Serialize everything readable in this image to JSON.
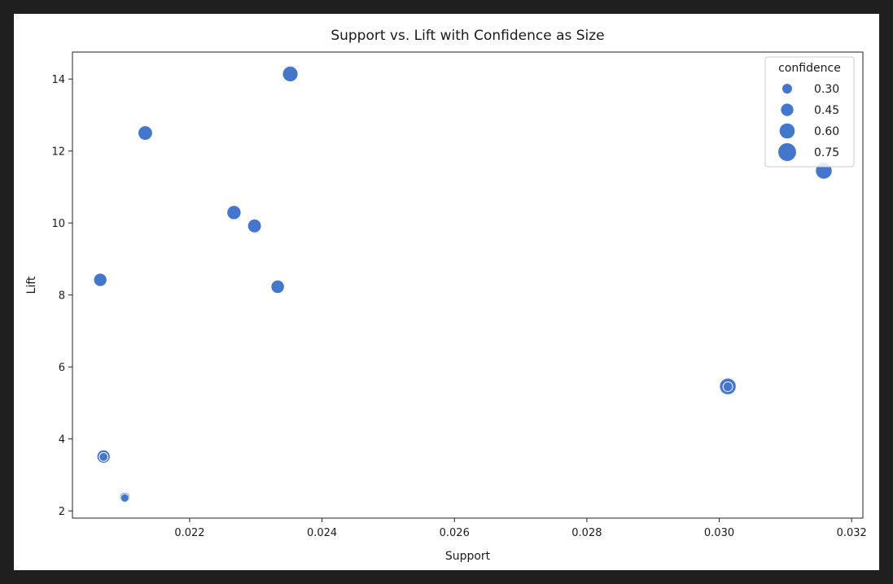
{
  "chart_data": {
    "type": "scatter",
    "title": "Support vs. Lift with Confidence as Size",
    "xlabel": "Support",
    "ylabel": "Lift",
    "xlim": [
      0.02023,
      0.03217
    ],
    "ylim": [
      1.8,
      14.75
    ],
    "x_ticks": [
      0.022,
      0.024,
      0.026,
      0.028,
      0.03,
      0.032
    ],
    "x_tick_labels": [
      "0.022",
      "0.024",
      "0.026",
      "0.028",
      "0.030",
      "0.032"
    ],
    "y_ticks": [
      2,
      4,
      6,
      8,
      10,
      12,
      14
    ],
    "y_tick_labels": [
      "2",
      "4",
      "6",
      "8",
      "10",
      "12",
      "14"
    ],
    "grid": false,
    "color": "#4477cc",
    "points": [
      {
        "x": 0.02352,
        "y": 14.16,
        "confidence": 0.6
      },
      {
        "x": 0.02352,
        "y": 14.14,
        "confidence": 0.58
      },
      {
        "x": 0.02133,
        "y": 12.5,
        "confidence": 0.52
      },
      {
        "x": 0.03158,
        "y": 11.47,
        "confidence": 0.7
      },
      {
        "x": 0.03158,
        "y": 11.45,
        "confidence": 0.64
      },
      {
        "x": 0.02267,
        "y": 10.29,
        "confidence": 0.5
      },
      {
        "x": 0.02298,
        "y": 9.92,
        "confidence": 0.48
      },
      {
        "x": 0.02065,
        "y": 8.42,
        "confidence": 0.45
      },
      {
        "x": 0.02333,
        "y": 8.23,
        "confidence": 0.46
      },
      {
        "x": 0.03013,
        "y": 5.46,
        "confidence": 0.64
      },
      {
        "x": 0.03013,
        "y": 5.45,
        "confidence": 0.25
      },
      {
        "x": 0.0207,
        "y": 3.51,
        "confidence": 0.45
      },
      {
        "x": 0.0207,
        "y": 3.5,
        "confidence": 0.2
      },
      {
        "x": 0.02102,
        "y": 2.37,
        "confidence": 0.3
      },
      {
        "x": 0.02102,
        "y": 2.36,
        "confidence": 0.18
      }
    ],
    "legend": {
      "title": "confidence",
      "position": "top-right",
      "entries": [
        {
          "label": "0.30",
          "value": 0.3
        },
        {
          "label": "0.45",
          "value": 0.45
        },
        {
          "label": "0.60",
          "value": 0.6
        },
        {
          "label": "0.75",
          "value": 0.75
        }
      ]
    }
  }
}
